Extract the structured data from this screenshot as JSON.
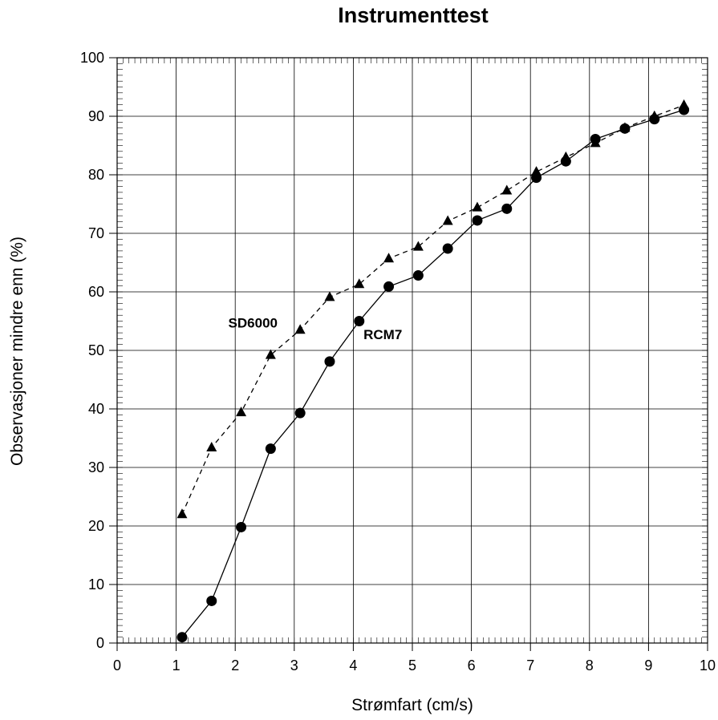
{
  "chart_data": {
    "type": "line",
    "title": "Instrumenttest",
    "xlabel": "Strømfart (cm/s)",
    "ylabel": "Observasjoner mindre enn (%)",
    "xlim": [
      0,
      10
    ],
    "ylim": [
      0,
      100
    ],
    "xticks": [
      0,
      1,
      2,
      3,
      4,
      5,
      6,
      7,
      8,
      9,
      10
    ],
    "yticks": [
      0,
      10,
      20,
      30,
      40,
      50,
      60,
      70,
      80,
      90,
      100
    ],
    "grid": true,
    "series": [
      {
        "name": "RCM7",
        "marker": "circle",
        "line": "solid",
        "label_at": [
          4.5,
          52.5
        ],
        "x": [
          1.1,
          1.6,
          2.1,
          2.6,
          3.1,
          3.6,
          4.1,
          4.6,
          5.1,
          5.6,
          6.1,
          6.6,
          7.1,
          7.6,
          8.1,
          8.6,
          9.1,
          9.6
        ],
        "y": [
          1,
          7.2,
          19.8,
          33.2,
          39.3,
          48.1,
          55,
          60.9,
          62.8,
          67.4,
          72.2,
          74.2,
          79.5,
          82.3,
          86.1,
          87.9,
          89.5,
          91.1
        ]
      },
      {
        "name": "SD6000",
        "marker": "triangle",
        "line": "dashed",
        "label_at": [
          2.3,
          54.5
        ],
        "x": [
          1.1,
          1.6,
          2.1,
          2.6,
          3.1,
          3.6,
          4.1,
          4.6,
          5.1,
          5.6,
          6.1,
          6.6,
          7.1,
          7.6,
          8.1,
          8.6,
          9.1,
          9.6
        ],
        "y": [
          22,
          33.4,
          39.4,
          49.2,
          53.5,
          59.1,
          61.3,
          65.7,
          67.7,
          72.1,
          74.4,
          77.3,
          80.5,
          83,
          85.4,
          88,
          90,
          91.9
        ]
      }
    ]
  }
}
